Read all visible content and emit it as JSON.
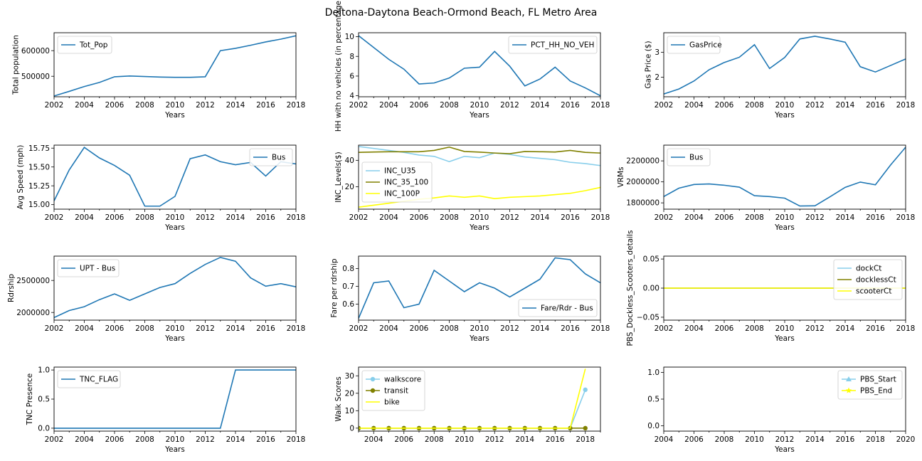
{
  "figure": {
    "title": "Deltona-Daytona Beach-Ormond Beach, FL Metro Area"
  },
  "colors": {
    "blue": "#1f77b4",
    "light_blue": "#87ceeb",
    "olive": "#808000",
    "yellow": "#ffff00"
  },
  "chart_data": [
    {
      "id": "p1",
      "type": "line",
      "ylabel": "Total population",
      "xlabel": "Years",
      "xlim": [
        2002,
        2018
      ],
      "ylim": [
        420000,
        670000
      ],
      "xticks": [
        "2002",
        "2004",
        "2006",
        "2008",
        "2010",
        "2012",
        "2014",
        "2016",
        "2018"
      ],
      "yticks": [
        {
          "v": 500000,
          "label": "500000"
        },
        {
          "v": 600000,
          "label": "600000"
        }
      ],
      "legend": "upper-left",
      "x": [
        2002,
        2003,
        2004,
        2005,
        2006,
        2007,
        2008,
        2009,
        2010,
        2011,
        2012,
        2013,
        2014,
        2015,
        2016,
        2017,
        2018
      ],
      "series": [
        {
          "name": "Tot_Pop",
          "color": "#1f77b4",
          "marker": "none",
          "values": [
            423000,
            441000,
            460000,
            476000,
            498000,
            501000,
            499000,
            497000,
            496000,
            496000,
            498000,
            600000,
            609000,
            621000,
            634000,
            645000,
            658000
          ]
        }
      ]
    },
    {
      "id": "p2",
      "type": "line",
      "ylabel": "HH with no vehicles (in percentage)",
      "xlabel": "Years",
      "xlim": [
        2002,
        2018
      ],
      "ylim": [
        3.9,
        10.4
      ],
      "xticks": [
        "2002",
        "2004",
        "2006",
        "2008",
        "2010",
        "2012",
        "2014",
        "2016",
        "2018"
      ],
      "yticks": [
        {
          "v": 4,
          "label": "4"
        },
        {
          "v": 6,
          "label": "6"
        },
        {
          "v": 8,
          "label": "8"
        },
        {
          "v": 10,
          "label": "10"
        }
      ],
      "legend": "upper-right",
      "x": [
        2002,
        2003,
        2004,
        2005,
        2006,
        2007,
        2008,
        2009,
        2010,
        2011,
        2012,
        2013,
        2014,
        2015,
        2016,
        2017,
        2018
      ],
      "series": [
        {
          "name": "PCT_HH_NO_VEH",
          "color": "#1f77b4",
          "marker": "none",
          "values": [
            10.1,
            8.9,
            7.7,
            6.7,
            5.2,
            5.3,
            5.8,
            6.8,
            6.9,
            8.5,
            7.0,
            5.0,
            5.7,
            6.9,
            5.5,
            4.8,
            4.0
          ]
        }
      ]
    },
    {
      "id": "p3",
      "type": "line",
      "ylabel": "Gas Price ($)",
      "xlabel": "Years",
      "xlim": [
        2002,
        2018
      ],
      "ylim": [
        1.22,
        3.78
      ],
      "xticks": [
        "2002",
        "2004",
        "2006",
        "2008",
        "2010",
        "2012",
        "2014",
        "2016",
        "2018"
      ],
      "yticks": [
        {
          "v": 2,
          "label": "2"
        },
        {
          "v": 3,
          "label": "3"
        }
      ],
      "legend": "upper-left",
      "x": [
        2002,
        2003,
        2004,
        2005,
        2006,
        2007,
        2008,
        2009,
        2010,
        2011,
        2012,
        2013,
        2014,
        2015,
        2016,
        2017,
        2018
      ],
      "series": [
        {
          "name": "GasPrice",
          "color": "#1f77b4",
          "marker": "none",
          "values": [
            1.33,
            1.53,
            1.85,
            2.3,
            2.59,
            2.8,
            3.3,
            2.35,
            2.79,
            3.53,
            3.64,
            3.53,
            3.4,
            2.42,
            2.21,
            2.47,
            2.73
          ]
        }
      ]
    },
    {
      "id": "p4",
      "type": "line",
      "ylabel": "Avg Speed (mph)",
      "xlabel": "Years",
      "xlim": [
        2002,
        2018
      ],
      "ylim": [
        14.94,
        15.79
      ],
      "xticks": [
        "2002",
        "2004",
        "2006",
        "2008",
        "2010",
        "2012",
        "2014",
        "2016",
        "2018"
      ],
      "yticks": [
        {
          "v": 15.0,
          "label": "15.00"
        },
        {
          "v": 15.25,
          "label": "15.25"
        },
        {
          "v": 15.5,
          "label": "15.50"
        },
        {
          "v": 15.75,
          "label": "15.75"
        }
      ],
      "legend": "upper-right",
      "x": [
        2002,
        2003,
        2004,
        2005,
        2006,
        2007,
        2008,
        2009,
        2010,
        2011,
        2012,
        2013,
        2014,
        2015,
        2016,
        2017,
        2018
      ],
      "series": [
        {
          "name": "Bus",
          "color": "#1f77b4",
          "marker": "none",
          "values": [
            15.05,
            15.46,
            15.76,
            15.62,
            15.52,
            15.39,
            14.98,
            14.98,
            15.11,
            15.61,
            15.66,
            15.57,
            15.53,
            15.56,
            15.38,
            15.57,
            15.54
          ]
        }
      ]
    },
    {
      "id": "p5",
      "type": "line",
      "ylabel": "INC_Levels($)",
      "xlabel": "Years",
      "xlim": [
        2002,
        2018
      ],
      "ylim": [
        3,
        51.5
      ],
      "xticks": [
        "2002",
        "2004",
        "2006",
        "2008",
        "2010",
        "2012",
        "2014",
        "2016",
        "2018"
      ],
      "yticks": [
        {
          "v": 20,
          "label": "20"
        },
        {
          "v": 40,
          "label": "40"
        }
      ],
      "legend": "center-left",
      "x": [
        2002,
        2003,
        2004,
        2005,
        2006,
        2007,
        2008,
        2009,
        2010,
        2011,
        2012,
        2013,
        2014,
        2015,
        2016,
        2017,
        2018
      ],
      "series": [
        {
          "name": "INC_U35",
          "color": "#87ceeb",
          "marker": "none",
          "values": [
            50.5,
            49.0,
            47.5,
            46.0,
            44.0,
            43.0,
            39.0,
            43.0,
            42.0,
            45.5,
            44.5,
            42.5,
            41.5,
            40.5,
            38.5,
            37.5,
            36.0
          ]
        },
        {
          "name": "INC_35_100",
          "color": "#808000",
          "marker": "none",
          "values": [
            46.0,
            46.3,
            46.5,
            46.5,
            46.5,
            47.5,
            50.0,
            46.7,
            46.2,
            45.5,
            45.0,
            46.7,
            46.5,
            46.3,
            47.5,
            46.0,
            45.5
          ]
        },
        {
          "name": "INC_100P",
          "color": "#ffff00",
          "marker": "none",
          "values": [
            4.5,
            6.0,
            7.5,
            9.0,
            10.5,
            11.5,
            13.0,
            12.0,
            13.0,
            11.0,
            12.0,
            12.5,
            13.0,
            14.0,
            15.0,
            17.0,
            19.5
          ]
        }
      ]
    },
    {
      "id": "p6",
      "type": "line",
      "ylabel": "VRMs",
      "xlabel": "Years",
      "xlim": [
        2002,
        2018
      ],
      "ylim": [
        1740000,
        2350000
      ],
      "xticks": [
        "2002",
        "2004",
        "2006",
        "2008",
        "2010",
        "2012",
        "2014",
        "2016",
        "2018"
      ],
      "yticks": [
        {
          "v": 1800000,
          "label": "1800000"
        },
        {
          "v": 2000000,
          "label": "2000000"
        },
        {
          "v": 2200000,
          "label": "2200000"
        }
      ],
      "legend": "upper-left",
      "x": [
        2002,
        2003,
        2004,
        2005,
        2006,
        2007,
        2008,
        2009,
        2010,
        2011,
        2012,
        2013,
        2014,
        2015,
        2016,
        2017,
        2018
      ],
      "series": [
        {
          "name": "Bus",
          "color": "#1f77b4",
          "marker": "none",
          "values": [
            1860000,
            1940000,
            1975000,
            1980000,
            1968000,
            1950000,
            1868000,
            1860000,
            1845000,
            1770000,
            1772000,
            1858000,
            1948000,
            1998000,
            1972000,
            2160000,
            2330000
          ]
        }
      ]
    },
    {
      "id": "p7",
      "type": "line",
      "ylabel": "Rdrship",
      "xlabel": "Years",
      "xlim": [
        2002,
        2018
      ],
      "ylim": [
        1880000,
        2880000
      ],
      "xticks": [
        "2002",
        "2004",
        "2006",
        "2008",
        "2010",
        "2012",
        "2014",
        "2016",
        "2018"
      ],
      "yticks": [
        {
          "v": 2000000,
          "label": "2000000"
        },
        {
          "v": 2500000,
          "label": "2500000"
        }
      ],
      "legend": "upper-left",
      "x": [
        2002,
        2003,
        2004,
        2005,
        2006,
        2007,
        2008,
        2009,
        2010,
        2011,
        2012,
        2013,
        2014,
        2015,
        2016,
        2017,
        2018
      ],
      "series": [
        {
          "name": "UPT - Bus",
          "color": "#1f77b4",
          "marker": "none",
          "values": [
            1920000,
            2030000,
            2090000,
            2200000,
            2290000,
            2190000,
            2290000,
            2390000,
            2450000,
            2610000,
            2750000,
            2860000,
            2800000,
            2540000,
            2410000,
            2450000,
            2400000
          ]
        }
      ]
    },
    {
      "id": "p8",
      "type": "line",
      "ylabel": "Fare per rdrship",
      "xlabel": "Years",
      "xlim": [
        2002,
        2018
      ],
      "ylim": [
        0.51,
        0.87
      ],
      "xticks": [
        "2002",
        "2004",
        "2006",
        "2008",
        "2010",
        "2012",
        "2014",
        "2016",
        "2018"
      ],
      "yticks": [
        {
          "v": 0.6,
          "label": "0.6"
        },
        {
          "v": 0.7,
          "label": "0.7"
        },
        {
          "v": 0.8,
          "label": "0.8"
        }
      ],
      "legend": "lower-right",
      "x": [
        2002,
        2003,
        2004,
        2005,
        2006,
        2007,
        2008,
        2009,
        2010,
        2011,
        2012,
        2013,
        2014,
        2015,
        2016,
        2017,
        2018
      ],
      "series": [
        {
          "name": "Fare/Rdr - Bus",
          "color": "#1f77b4",
          "marker": "none",
          "values": [
            0.52,
            0.72,
            0.73,
            0.58,
            0.6,
            0.79,
            0.73,
            0.67,
            0.72,
            0.69,
            0.64,
            0.69,
            0.74,
            0.86,
            0.85,
            0.77,
            0.72
          ]
        }
      ]
    },
    {
      "id": "p9",
      "type": "line",
      "ylabel": "PBS_Dockless_Scooters_details",
      "xlabel": "Years",
      "xlim": [
        2002,
        2018
      ],
      "ylim": [
        -0.055,
        0.055
      ],
      "xticks": [
        "2002",
        "2004",
        "2006",
        "2008",
        "2010",
        "2012",
        "2014",
        "2016",
        "2018"
      ],
      "yticks": [
        {
          "v": -0.05,
          "label": "−0.05"
        },
        {
          "v": 0.0,
          "label": "0.00"
        },
        {
          "v": 0.05,
          "label": "0.05"
        }
      ],
      "legend": "upper-right",
      "x": [
        2002,
        2003,
        2004,
        2005,
        2006,
        2007,
        2008,
        2009,
        2010,
        2011,
        2012,
        2013,
        2014,
        2015,
        2016,
        2017,
        2018
      ],
      "series": [
        {
          "name": "dockCt",
          "color": "#87ceeb",
          "marker": "none",
          "values": [
            0,
            0,
            0,
            0,
            0,
            0,
            0,
            0,
            0,
            0,
            0,
            0,
            0,
            0,
            0,
            0,
            0
          ]
        },
        {
          "name": "docklessCt",
          "color": "#808000",
          "marker": "none",
          "values": [
            0,
            0,
            0,
            0,
            0,
            0,
            0,
            0,
            0,
            0,
            0,
            0,
            0,
            0,
            0,
            0,
            0
          ]
        },
        {
          "name": "scooterCt",
          "color": "#ffff00",
          "marker": "none",
          "values": [
            0,
            0,
            0,
            0,
            0,
            0,
            0,
            0,
            0,
            0,
            0,
            0,
            0,
            0,
            0,
            0,
            0
          ]
        }
      ]
    },
    {
      "id": "p10",
      "type": "line",
      "ylabel": "TNC Presence",
      "xlabel": "Years",
      "xlim": [
        2002,
        2018
      ],
      "ylim": [
        -0.05,
        1.05
      ],
      "xticks": [
        "2002",
        "2004",
        "2006",
        "2008",
        "2010",
        "2012",
        "2014",
        "2016",
        "2018"
      ],
      "yticks": [
        {
          "v": 0.0,
          "label": "0.0"
        },
        {
          "v": 0.5,
          "label": "0.5"
        },
        {
          "v": 1.0,
          "label": "1.0"
        }
      ],
      "legend": "upper-left",
      "x": [
        2002,
        2003,
        2004,
        2005,
        2006,
        2007,
        2008,
        2009,
        2010,
        2011,
        2012,
        2013,
        2014,
        2015,
        2016,
        2017,
        2018
      ],
      "series": [
        {
          "name": "TNC_FLAG",
          "color": "#1f77b4",
          "marker": "none",
          "values": [
            0,
            0,
            0,
            0,
            0,
            0,
            0,
            0,
            0,
            0,
            0,
            0,
            1,
            1,
            1,
            1,
            1
          ]
        }
      ]
    },
    {
      "id": "p11",
      "type": "line",
      "ylabel": "Walk Scores",
      "xlabel": "",
      "xlim": [
        2003,
        2019
      ],
      "ylim": [
        -1.7,
        35
      ],
      "xticks": [
        "2004",
        "2006",
        "2008",
        "2010",
        "2012",
        "2014",
        "2016",
        "2018"
      ],
      "yticks": [
        {
          "v": 0,
          "label": "0"
        },
        {
          "v": 10,
          "label": "10"
        },
        {
          "v": 20,
          "label": "20"
        },
        {
          "v": 30,
          "label": "30"
        }
      ],
      "legend": "upper-left",
      "x": [
        2003,
        2004,
        2005,
        2006,
        2007,
        2008,
        2009,
        2010,
        2011,
        2012,
        2013,
        2014,
        2015,
        2016,
        2017,
        2018
      ],
      "series": [
        {
          "name": "walkscore",
          "color": "#87ceeb",
          "marker": "circle",
          "values": [
            0,
            0,
            0,
            0,
            0,
            0,
            0,
            0,
            0,
            0,
            0,
            0,
            0,
            0,
            0,
            22
          ]
        },
        {
          "name": "transit",
          "color": "#808000",
          "marker": "circle",
          "values": [
            0,
            0,
            0,
            0,
            0,
            0,
            0,
            0,
            0,
            0,
            0,
            0,
            0,
            0,
            0,
            0
          ]
        },
        {
          "name": "bike",
          "color": "#ffff00",
          "marker": "none",
          "values": [
            0,
            0,
            0,
            0,
            0,
            0,
            0,
            0,
            0,
            0,
            0,
            0,
            0,
            0,
            0,
            34
          ]
        }
      ]
    },
    {
      "id": "p12",
      "type": "line",
      "ylabel": "",
      "xlabel": "Years",
      "xlim": [
        2004,
        2020
      ],
      "ylim": [
        -0.1,
        1.1
      ],
      "xticks": [
        "2004",
        "2006",
        "2008",
        "2010",
        "2012",
        "2014",
        "2016",
        "2018",
        "2020"
      ],
      "yticks": [
        {
          "v": 0.0,
          "label": "0.0"
        },
        {
          "v": 0.5,
          "label": "0.5"
        },
        {
          "v": 1.0,
          "label": "1.0"
        }
      ],
      "legend": "upper-right",
      "x": [],
      "series": [
        {
          "name": "PBS_Start",
          "color": "#87ceeb",
          "marker": "triangle",
          "values": []
        },
        {
          "name": "PBS_End",
          "color": "#ffff00",
          "marker": "star",
          "values": []
        }
      ]
    }
  ]
}
